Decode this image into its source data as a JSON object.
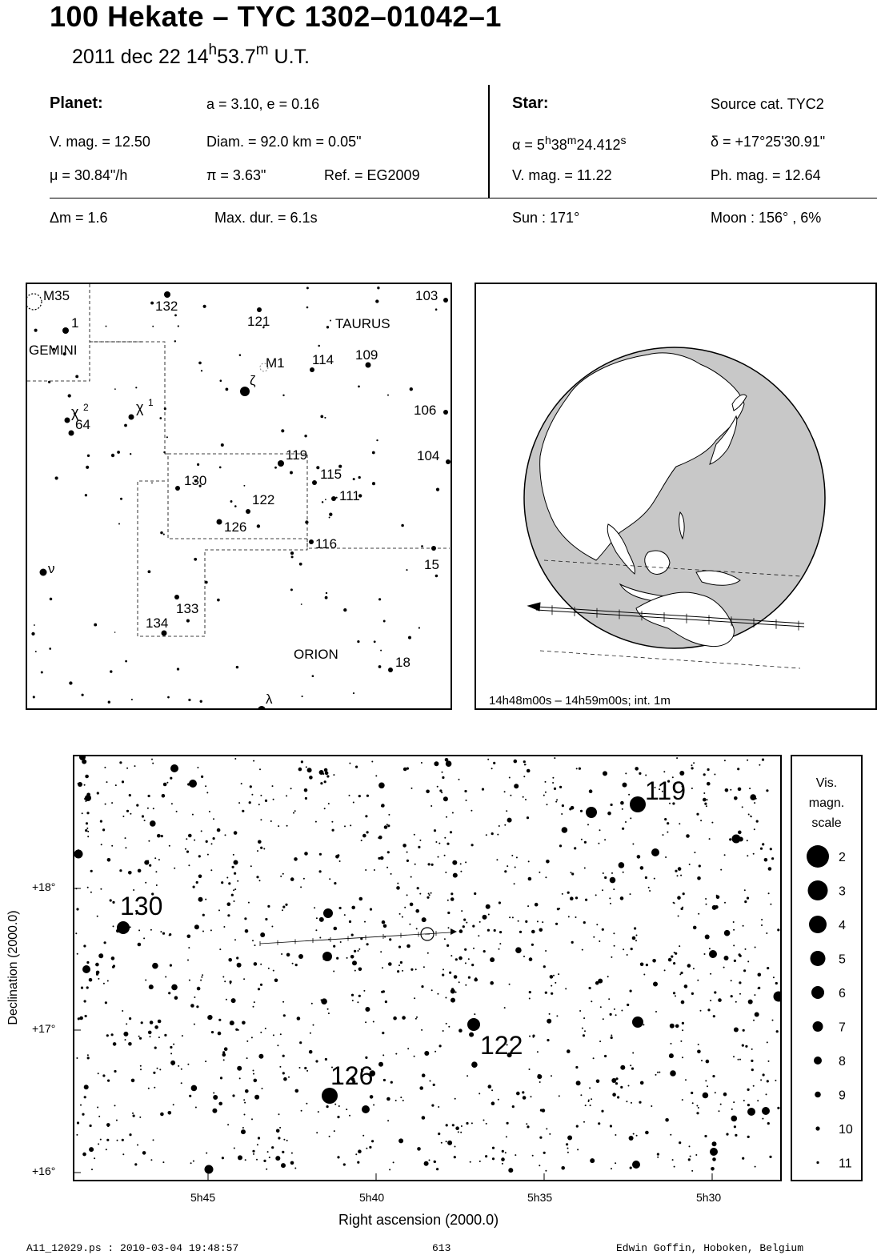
{
  "header": {
    "title": "100 Hekate  –  TYC 1302–01042–1",
    "date_prefix": "2011 dec 22  14",
    "date_h": "h",
    "date_mid": "53.7",
    "date_m": "m",
    "date_suffix": " U.T."
  },
  "planet": {
    "heading": "Planet:",
    "orbit": "a = 3.10, e = 0.16",
    "vmag": "V. mag. = 12.50",
    "diam": "Diam. = 92.0 km = 0.05\"",
    "mu": "μ =  30.84\"/h",
    "pi": "π =  3.63\"",
    "ref": "Ref. = EG2009"
  },
  "star": {
    "heading": "Star:",
    "source": "Source cat.  TYC2",
    "alpha_prefix": "α =  5",
    "alpha_h": "h",
    "alpha_mid": "38",
    "alpha_m": "m",
    "alpha_val": "24.412",
    "alpha_s": "s",
    "delta": "δ = +17°25'30.91\"",
    "vmag": "V. mag. = 11.22",
    "phmag": "Ph. mag. = 12.64"
  },
  "event": {
    "dm": "Δm = 1.6",
    "maxdur": "Max. dur. = 6.1s",
    "sun": "Sun : 171°",
    "moon": "Moon : 156° ,  6%"
  },
  "finder": {
    "labels": [
      "M35",
      "1",
      "GEMINI",
      "132",
      "121",
      "TAURUS",
      "103",
      "M1",
      "114",
      "109",
      "ζ",
      "χ",
      "2",
      "64",
      "χ",
      "1",
      "106",
      "119",
      "104",
      "130",
      "115",
      "122",
      "111",
      "126",
      "116",
      "ν",
      "15",
      "133",
      "134",
      "ORION",
      "18",
      "λ"
    ]
  },
  "globe": {
    "caption": "14h48m00s – 14h59m00s; int.  1m"
  },
  "chart": {
    "ylabel": "Declination (2000.0)",
    "xlabel": "Right ascension (2000.0)",
    "yticks": [
      "+18°",
      "+17°",
      "+16°"
    ],
    "xticks": [
      "5h45",
      "5h40",
      "5h35",
      "5h30"
    ],
    "star_labels": [
      "119",
      "130",
      "122",
      "126"
    ]
  },
  "legend": {
    "title_lines": [
      "Vis.",
      "magn.",
      "scale"
    ],
    "mags": [
      "2",
      "3",
      "4",
      "5",
      "6",
      "7",
      "8",
      "9",
      "10",
      "11"
    ]
  },
  "footer": {
    "left": "A11_12029.ps : 2010-03-04 19:48:57",
    "center": "613",
    "right": "Edwin Goffin, Hoboken, Belgium"
  }
}
